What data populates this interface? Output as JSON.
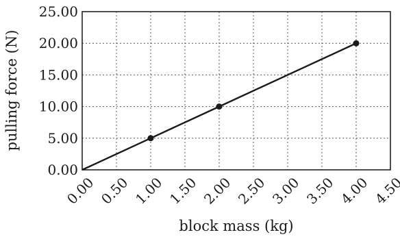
{
  "chart_data": {
    "type": "line",
    "xlabel": "block mass (kg)",
    "ylabel": "pulling force (N)",
    "xlim": [
      0,
      4.5
    ],
    "ylim": [
      0,
      25
    ],
    "x_ticks": [
      "0.00",
      "0.50",
      "1.00",
      "1.50",
      "2.00",
      "2.50",
      "3.00",
      "3.50",
      "4.00",
      "4.50"
    ],
    "y_ticks": [
      "0.00",
      "5.00",
      "10.00",
      "15.00",
      "20.00",
      "25.00"
    ],
    "grid": true,
    "series": [
      {
        "x": [
          0,
          1,
          2,
          4
        ],
        "y": [
          0,
          5,
          10,
          20
        ],
        "markers": [
          false,
          true,
          true,
          true
        ],
        "color": "#1a1a1a"
      }
    ]
  }
}
